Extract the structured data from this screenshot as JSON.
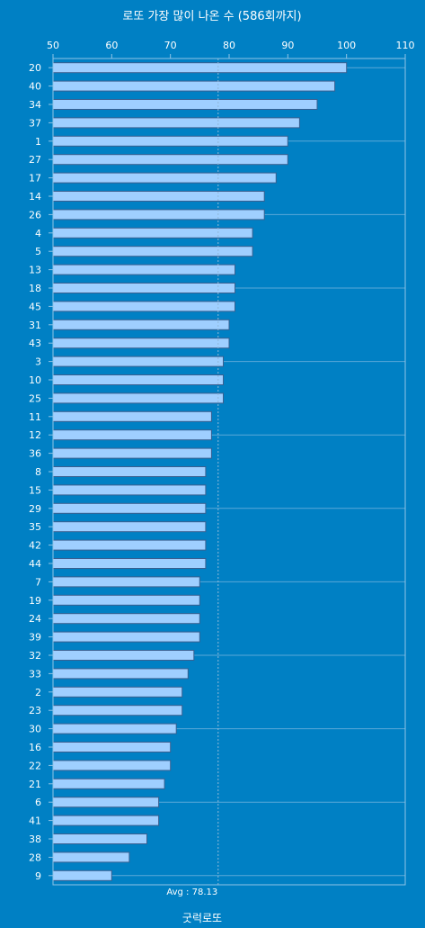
{
  "chart_data": {
    "type": "bar",
    "orientation": "horizontal",
    "title": "로또 가장 많이 나온 수 (586회까지)",
    "footer": "굿럭로또",
    "xlim": [
      50,
      110
    ],
    "xticks": [
      50,
      60,
      70,
      80,
      90,
      100,
      110
    ],
    "average": {
      "label": "Avg : 78.13",
      "value": 78.13
    },
    "colors": {
      "background": "#0080c4",
      "bar_fill": "#9fcfff",
      "bar_stroke": "#3a5f90"
    },
    "categories": [
      "20",
      "40",
      "34",
      "37",
      "1",
      "27",
      "17",
      "14",
      "26",
      "4",
      "5",
      "13",
      "18",
      "45",
      "31",
      "43",
      "3",
      "10",
      "25",
      "11",
      "12",
      "36",
      "8",
      "15",
      "29",
      "35",
      "42",
      "44",
      "7",
      "19",
      "24",
      "39",
      "32",
      "33",
      "2",
      "23",
      "30",
      "16",
      "22",
      "21",
      "6",
      "41",
      "38",
      "28",
      "9"
    ],
    "values": [
      100,
      98,
      95,
      92,
      90,
      90,
      88,
      86,
      86,
      84,
      84,
      81,
      81,
      81,
      80,
      80,
      79,
      79,
      79,
      77,
      77,
      77,
      76,
      76,
      76,
      76,
      76,
      76,
      75,
      75,
      75,
      75,
      74,
      73,
      72,
      72,
      71,
      70,
      70,
      69,
      68,
      68,
      66,
      63,
      60
    ]
  }
}
